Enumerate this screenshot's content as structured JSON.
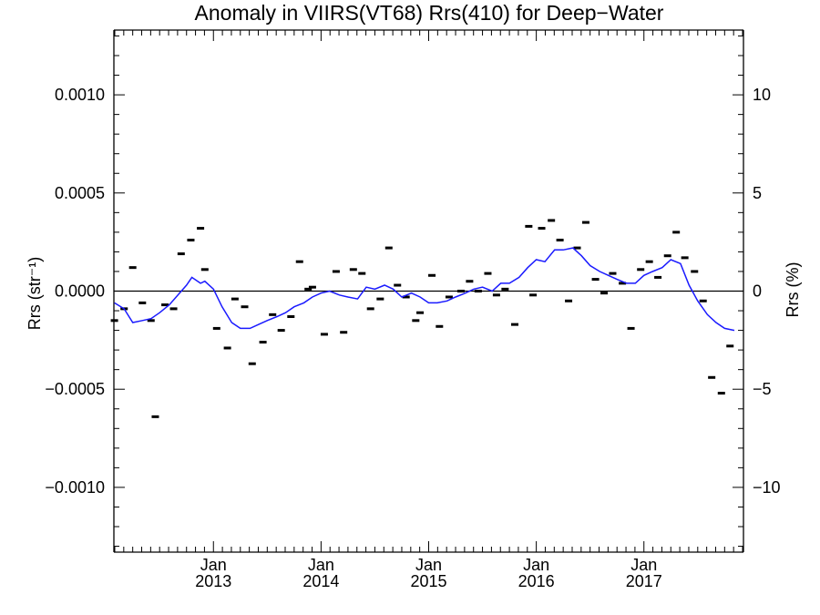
{
  "chart_data": {
    "type": "line",
    "title": "Anomaly in VIIRS(VT68) Rrs(410) for Deep−Water",
    "ylabel_left": "Rrs (str⁻¹)",
    "ylabel_right": "Rrs (%)",
    "xlim": [
      2012.075,
      2017.925
    ],
    "ylim": [
      -0.00133,
      0.00133
    ],
    "ylim_right": [
      -13.3,
      13.3
    ],
    "grid": false,
    "x_tick_labels": [
      {
        "x": 2013.0,
        "month": "Jan",
        "year": "2013"
      },
      {
        "x": 2014.0,
        "month": "Jan",
        "year": "2014"
      },
      {
        "x": 2015.0,
        "month": "Jan",
        "year": "2015"
      },
      {
        "x": 2016.0,
        "month": "Jan",
        "year": "2016"
      },
      {
        "x": 2017.0,
        "month": "Jan",
        "year": "2017"
      }
    ],
    "y_ticks_left": [
      {
        "value": 0.001,
        "label": "0.0010"
      },
      {
        "value": 0.0005,
        "label": "0.0005"
      },
      {
        "value": 0.0,
        "label": "0.0000"
      },
      {
        "value": -0.0005,
        "label": "−0.0005"
      },
      {
        "value": -0.001,
        "label": "−0.0010"
      }
    ],
    "y_ticks_right": [
      {
        "value": 10,
        "label": "10"
      },
      {
        "value": 5,
        "label": "5"
      },
      {
        "value": 0,
        "label": "0"
      },
      {
        "value": -5,
        "label": "−5"
      },
      {
        "value": -10,
        "label": "−10"
      }
    ],
    "reference_line": 0,
    "series": [
      {
        "kind": "points",
        "color": "#000000",
        "points": [
          [
            2012.08,
            -0.00015
          ],
          [
            2012.17,
            -9e-05
          ],
          [
            2012.25,
            0.00012
          ],
          [
            2012.34,
            -6e-05
          ],
          [
            2012.42,
            -0.00015
          ],
          [
            2012.46,
            -0.00064
          ],
          [
            2012.55,
            -7e-05
          ],
          [
            2012.63,
            -9e-05
          ],
          [
            2012.7,
            0.00019
          ],
          [
            2012.79,
            0.00026
          ],
          [
            2012.88,
            0.00032
          ],
          [
            2012.92,
            0.00011
          ],
          [
            2013.03,
            -0.00019
          ],
          [
            2013.13,
            -0.00029
          ],
          [
            2013.2,
            -4e-05
          ],
          [
            2013.29,
            -8e-05
          ],
          [
            2013.36,
            -0.00037
          ],
          [
            2013.46,
            -0.00026
          ],
          [
            2013.55,
            -0.00012
          ],
          [
            2013.63,
            -0.0002
          ],
          [
            2013.72,
            -0.00013
          ],
          [
            2013.8,
            0.00015
          ],
          [
            2013.88,
            1e-05
          ],
          [
            2013.92,
            2e-05
          ],
          [
            2014.03,
            -0.00022
          ],
          [
            2014.14,
            0.0001
          ],
          [
            2014.21,
            -0.00021
          ],
          [
            2014.3,
            0.00011
          ],
          [
            2014.38,
            9e-05
          ],
          [
            2014.46,
            -9e-05
          ],
          [
            2014.55,
            -4e-05
          ],
          [
            2014.63,
            0.00022
          ],
          [
            2014.71,
            3e-05
          ],
          [
            2014.79,
            -3e-05
          ],
          [
            2014.88,
            -0.00015
          ],
          [
            2014.92,
            -0.00011
          ],
          [
            2015.03,
            8e-05
          ],
          [
            2015.1,
            -0.00018
          ],
          [
            2015.19,
            -3e-05
          ],
          [
            2015.3,
            0.0
          ],
          [
            2015.38,
            5e-05
          ],
          [
            2015.46,
            0.0
          ],
          [
            2015.55,
            9e-05
          ],
          [
            2015.63,
            -2e-05
          ],
          [
            2015.71,
            1e-05
          ],
          [
            2015.8,
            -0.00017
          ],
          [
            2015.93,
            0.00033
          ],
          [
            2015.97,
            -2e-05
          ],
          [
            2016.05,
            0.00032
          ],
          [
            2016.14,
            0.00036
          ],
          [
            2016.22,
            0.00026
          ],
          [
            2016.3,
            -5e-05
          ],
          [
            2016.38,
            0.00022
          ],
          [
            2016.46,
            0.00035
          ],
          [
            2016.55,
            6e-05
          ],
          [
            2016.63,
            -1e-05
          ],
          [
            2016.71,
            9e-05
          ],
          [
            2016.8,
            4e-05
          ],
          [
            2016.88,
            -0.00019
          ],
          [
            2016.97,
            0.00011
          ],
          [
            2017.05,
            0.00015
          ],
          [
            2017.13,
            7e-05
          ],
          [
            2017.22,
            0.00018
          ],
          [
            2017.3,
            0.0003
          ],
          [
            2017.38,
            0.00017
          ],
          [
            2017.47,
            0.0001
          ],
          [
            2017.55,
            -5e-05
          ],
          [
            2017.63,
            -0.00044
          ],
          [
            2017.72,
            -0.00052
          ],
          [
            2017.8,
            -0.00028
          ]
        ]
      },
      {
        "kind": "line",
        "color": "#1a1aff",
        "points": [
          [
            2012.08,
            -6e-05
          ],
          [
            2012.17,
            -9e-05
          ],
          [
            2012.25,
            -0.00016
          ],
          [
            2012.34,
            -0.00015
          ],
          [
            2012.42,
            -0.00014
          ],
          [
            2012.5,
            -0.00011
          ],
          [
            2012.59,
            -7e-05
          ],
          [
            2012.67,
            -2e-05
          ],
          [
            2012.75,
            3e-05
          ],
          [
            2012.8,
            7e-05
          ],
          [
            2012.88,
            4e-05
          ],
          [
            2012.92,
            5e-05
          ],
          [
            2013.0,
            1e-05
          ],
          [
            2013.08,
            -8e-05
          ],
          [
            2013.17,
            -0.00016
          ],
          [
            2013.25,
            -0.00019
          ],
          [
            2013.34,
            -0.00019
          ],
          [
            2013.42,
            -0.00017
          ],
          [
            2013.5,
            -0.00015
          ],
          [
            2013.59,
            -0.00013
          ],
          [
            2013.67,
            -0.00011
          ],
          [
            2013.75,
            -8e-05
          ],
          [
            2013.84,
            -6e-05
          ],
          [
            2013.92,
            -3e-05
          ],
          [
            2014.0,
            -1e-05
          ],
          [
            2014.08,
            0.0
          ],
          [
            2014.17,
            -2e-05
          ],
          [
            2014.25,
            -3e-05
          ],
          [
            2014.34,
            -4e-05
          ],
          [
            2014.42,
            2e-05
          ],
          [
            2014.5,
            1e-05
          ],
          [
            2014.59,
            3e-05
          ],
          [
            2014.67,
            1e-05
          ],
          [
            2014.75,
            -3e-05
          ],
          [
            2014.84,
            -1e-05
          ],
          [
            2014.92,
            -3e-05
          ],
          [
            2015.0,
            -6e-05
          ],
          [
            2015.08,
            -6e-05
          ],
          [
            2015.17,
            -5e-05
          ],
          [
            2015.25,
            -3e-05
          ],
          [
            2015.34,
            -1e-05
          ],
          [
            2015.42,
            1e-05
          ],
          [
            2015.5,
            2e-05
          ],
          [
            2015.59,
            0.0
          ],
          [
            2015.67,
            4e-05
          ],
          [
            2015.75,
            4e-05
          ],
          [
            2015.84,
            7e-05
          ],
          [
            2015.92,
            0.00012
          ],
          [
            2016.0,
            0.00016
          ],
          [
            2016.08,
            0.00015
          ],
          [
            2016.17,
            0.00021
          ],
          [
            2016.25,
            0.00021
          ],
          [
            2016.34,
            0.00022
          ],
          [
            2016.42,
            0.00018
          ],
          [
            2016.5,
            0.00013
          ],
          [
            2016.59,
            0.0001
          ],
          [
            2016.67,
            8e-05
          ],
          [
            2016.75,
            6e-05
          ],
          [
            2016.84,
            4e-05
          ],
          [
            2016.92,
            4e-05
          ],
          [
            2017.0,
            8e-05
          ],
          [
            2017.08,
            0.0001
          ],
          [
            2017.17,
            0.00012
          ],
          [
            2017.25,
            0.00016
          ],
          [
            2017.34,
            0.00014
          ],
          [
            2017.42,
            3e-05
          ],
          [
            2017.5,
            -5e-05
          ],
          [
            2017.59,
            -0.00012
          ],
          [
            2017.67,
            -0.00016
          ],
          [
            2017.75,
            -0.00019
          ],
          [
            2017.84,
            -0.0002
          ]
        ]
      }
    ]
  }
}
